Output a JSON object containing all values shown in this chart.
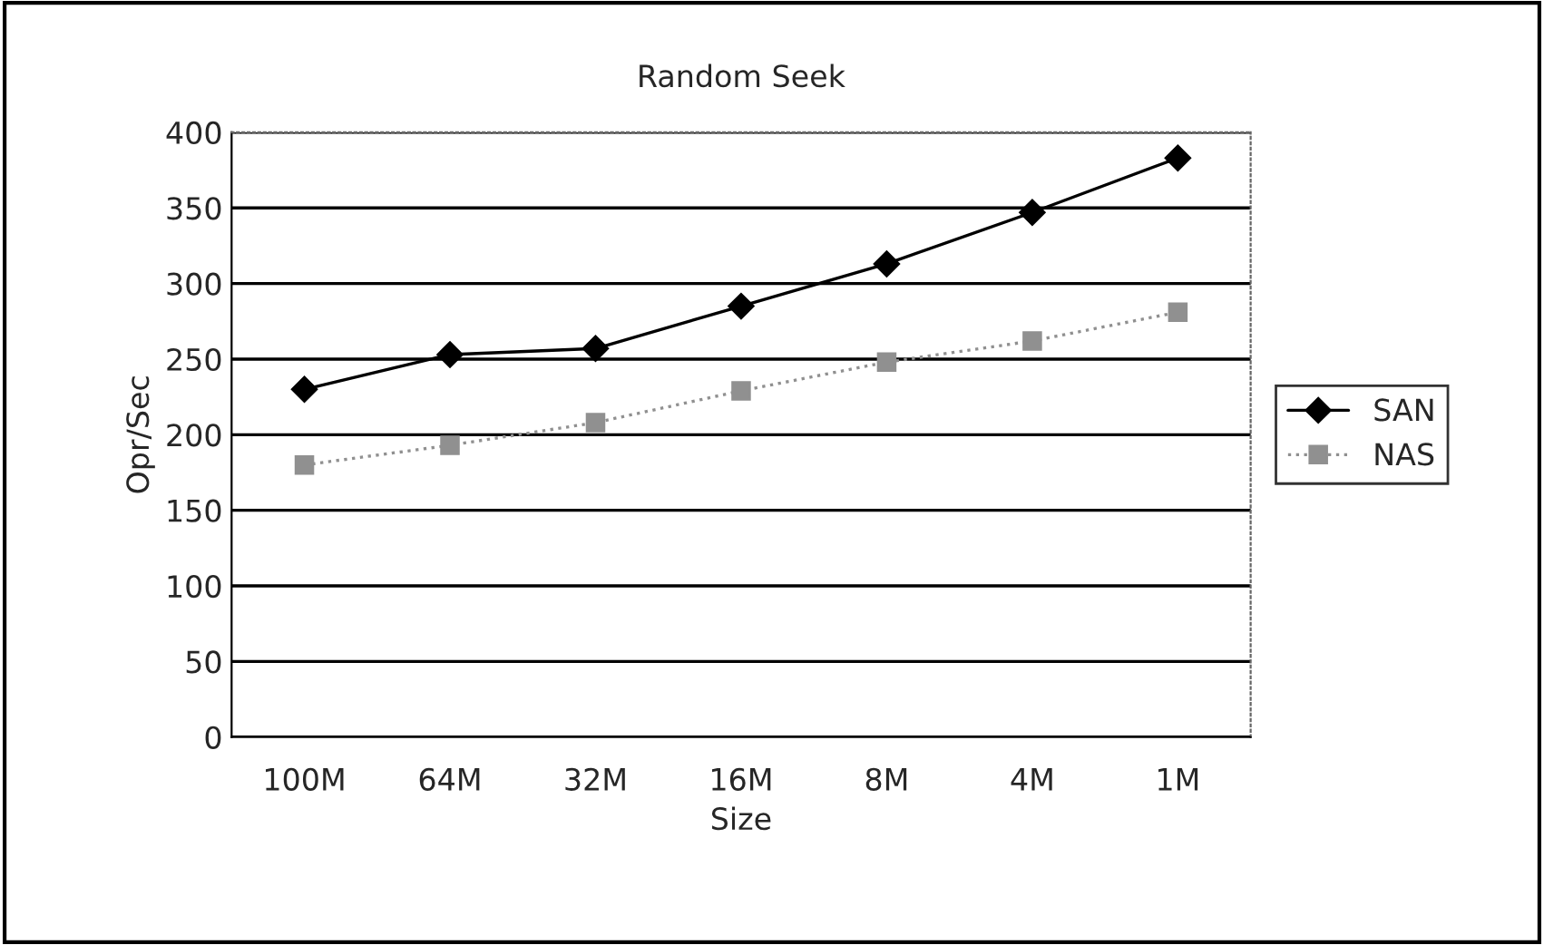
{
  "chart_data": {
    "type": "line",
    "title": "Random Seek",
    "xlabel": "Size",
    "ylabel": "Opr/Sec",
    "categories": [
      "100M",
      "64M",
      "32M",
      "16M",
      "8M",
      "4M",
      "1M"
    ],
    "series": [
      {
        "name": "SAN",
        "color": "#000000",
        "values": [
          230,
          253,
          257,
          285,
          313,
          347,
          383
        ],
        "marker": "diamond",
        "line_style": "solid"
      },
      {
        "name": "NAS",
        "color": "#909090",
        "values": [
          180,
          193,
          208,
          229,
          248,
          262,
          281
        ],
        "marker": "square",
        "line_style": "dotted"
      }
    ],
    "ylim": [
      0,
      400
    ],
    "yticks": [
      0,
      50,
      100,
      150,
      200,
      250,
      300,
      350,
      400
    ],
    "grid": "y",
    "legend": "right"
  }
}
